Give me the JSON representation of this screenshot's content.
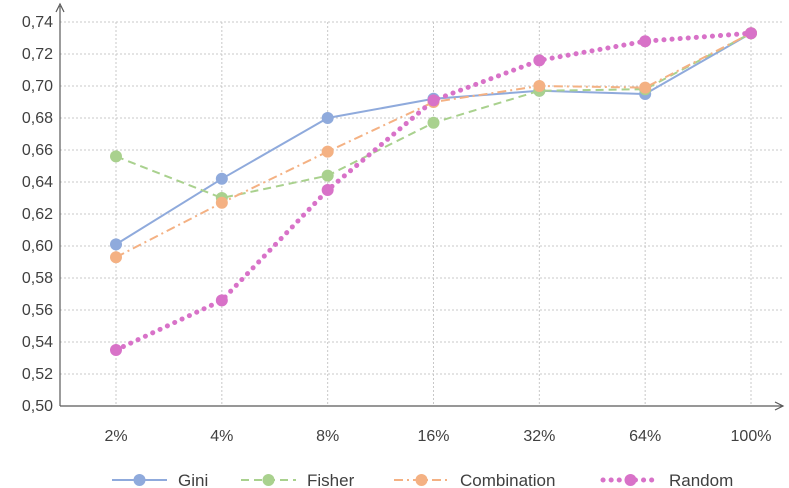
{
  "chart_data": {
    "type": "line",
    "categories": [
      "2%",
      "4%",
      "8%",
      "16%",
      "32%",
      "64%",
      "100%"
    ],
    "ylim": [
      0.5,
      0.74
    ],
    "yticks": [
      "0,50",
      "0,52",
      "0,54",
      "0,56",
      "0,58",
      "0,60",
      "0,62",
      "0,64",
      "0,66",
      "0,68",
      "0,70",
      "0,72",
      "0,74"
    ],
    "grid": true,
    "legend_position": "bottom",
    "series": [
      {
        "name": "Gini",
        "color": "#8FAADC",
        "style": "solid",
        "values": [
          0.601,
          0.642,
          0.68,
          0.692,
          0.697,
          0.695,
          0.733
        ]
      },
      {
        "name": "Fisher",
        "color": "#A9D18E",
        "style": "dashed",
        "values": [
          0.656,
          0.63,
          0.644,
          0.677,
          0.697,
          0.698,
          0.733
        ]
      },
      {
        "name": "Combination",
        "color": "#F4B183",
        "style": "dashdot",
        "values": [
          0.593,
          0.627,
          0.659,
          0.69,
          0.7,
          0.699,
          0.733
        ]
      },
      {
        "name": "Random",
        "color": "#D872C8",
        "style": "dotted",
        "values": [
          0.535,
          0.566,
          0.635,
          0.691,
          0.716,
          0.728,
          0.733
        ]
      }
    ]
  }
}
